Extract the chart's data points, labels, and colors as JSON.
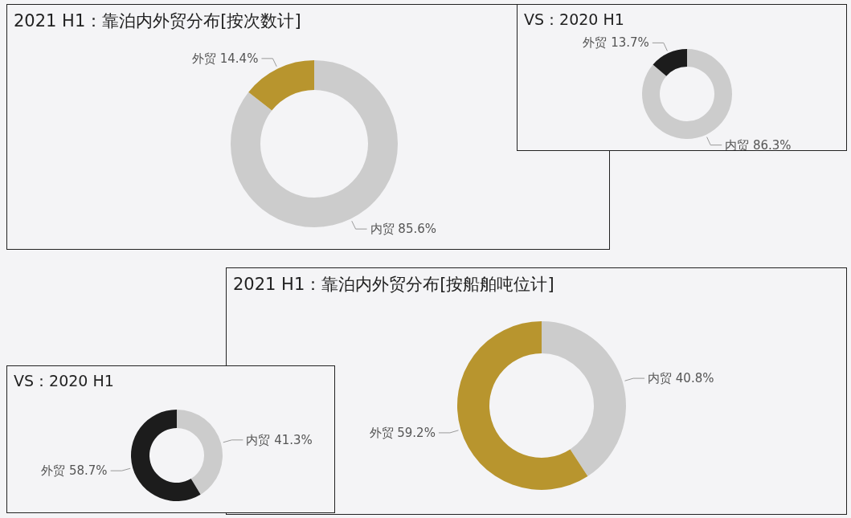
{
  "chart_data": [
    {
      "type": "donut",
      "title": "2021 H1：靠泊内外贸分布[按次数计]",
      "categories": [
        "内贸",
        "外贸"
      ],
      "values": [
        85.6,
        14.4
      ],
      "colors": [
        "#cccccc",
        "#b8952e"
      ],
      "value_labels": [
        "85.6%",
        "14.4%"
      ]
    },
    {
      "type": "donut",
      "title": "VS：2020 H1",
      "categories": [
        "内贸",
        "外贸"
      ],
      "values": [
        86.3,
        13.7
      ],
      "colors": [
        "#cccccc",
        "#1c1c1c"
      ],
      "value_labels": [
        "86.3%",
        "13.7%"
      ]
    },
    {
      "type": "donut",
      "title": "2021 H1：靠泊内外贸分布[按船舶吨位计]",
      "categories": [
        "内贸",
        "外贸"
      ],
      "values": [
        40.8,
        59.2
      ],
      "colors": [
        "#cccccc",
        "#b8952e"
      ],
      "value_labels": [
        "40.8%",
        "59.2%"
      ]
    },
    {
      "type": "donut",
      "title": "VS：2020 H1",
      "categories": [
        "内贸",
        "外贸"
      ],
      "values": [
        41.3,
        58.7
      ],
      "colors": [
        "#cccccc",
        "#1c1c1c"
      ],
      "value_labels": [
        "41.3%",
        "58.7%"
      ]
    }
  ]
}
